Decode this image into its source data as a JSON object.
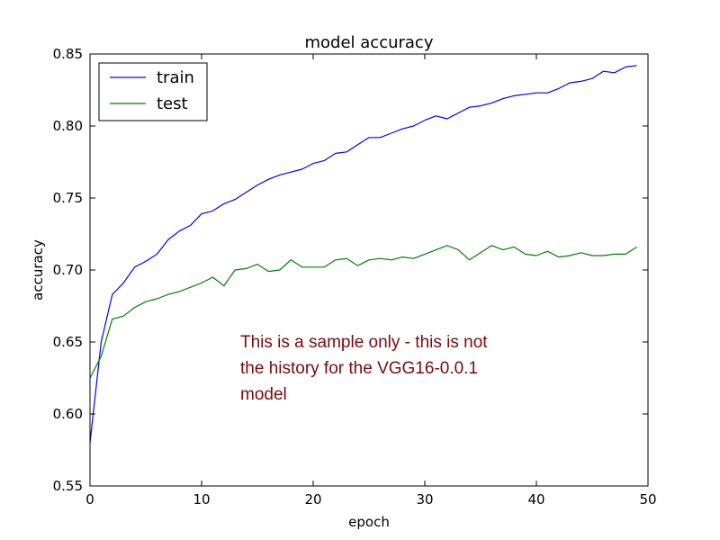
{
  "chart_data": {
    "type": "line",
    "title": "model accuracy",
    "xlabel": "epoch",
    "ylabel": "accuracy",
    "xlim": [
      0,
      50
    ],
    "ylim": [
      0.55,
      0.85
    ],
    "xticks": [
      0,
      10,
      20,
      30,
      40,
      50
    ],
    "yticks": [
      0.55,
      0.6,
      0.65,
      0.7,
      0.75,
      0.8,
      0.85
    ],
    "grid": false,
    "legend": "top-left",
    "x": [
      0,
      1,
      2,
      3,
      4,
      5,
      6,
      7,
      8,
      9,
      10,
      11,
      12,
      13,
      14,
      15,
      16,
      17,
      18,
      19,
      20,
      21,
      22,
      23,
      24,
      25,
      26,
      27,
      28,
      29,
      30,
      31,
      32,
      33,
      34,
      35,
      36,
      37,
      38,
      39,
      40,
      41,
      42,
      43,
      44,
      45,
      46,
      47,
      48,
      49
    ],
    "series": [
      {
        "name": "train",
        "color": "#0000ff",
        "values": [
          0.58,
          0.65,
          0.683,
          0.691,
          0.702,
          0.706,
          0.711,
          0.721,
          0.727,
          0.731,
          0.739,
          0.741,
          0.746,
          0.749,
          0.754,
          0.759,
          0.763,
          0.766,
          0.768,
          0.77,
          0.774,
          0.776,
          0.781,
          0.782,
          0.787,
          0.792,
          0.792,
          0.795,
          0.798,
          0.8,
          0.804,
          0.807,
          0.805,
          0.809,
          0.813,
          0.814,
          0.816,
          0.819,
          0.821,
          0.822,
          0.823,
          0.823,
          0.826,
          0.83,
          0.831,
          0.833,
          0.838,
          0.837,
          0.841,
          0.842
        ]
      },
      {
        "name": "test",
        "color": "#008000",
        "values": [
          0.625,
          0.64,
          0.666,
          0.668,
          0.674,
          0.678,
          0.68,
          0.683,
          0.685,
          0.688,
          0.691,
          0.695,
          0.689,
          0.7,
          0.701,
          0.704,
          0.699,
          0.7,
          0.707,
          0.702,
          0.702,
          0.702,
          0.707,
          0.708,
          0.703,
          0.707,
          0.708,
          0.707,
          0.709,
          0.708,
          0.711,
          0.714,
          0.717,
          0.714,
          0.707,
          0.712,
          0.717,
          0.714,
          0.716,
          0.711,
          0.71,
          0.713,
          0.709,
          0.71,
          0.712,
          0.71,
          0.71,
          0.711,
          0.711,
          0.716
        ]
      }
    ],
    "annotation": {
      "color": "#7b0a0a",
      "lines": [
        "This is a sample only - this is not",
        "the history for the VGG16-0.0.1",
        "model"
      ]
    }
  }
}
